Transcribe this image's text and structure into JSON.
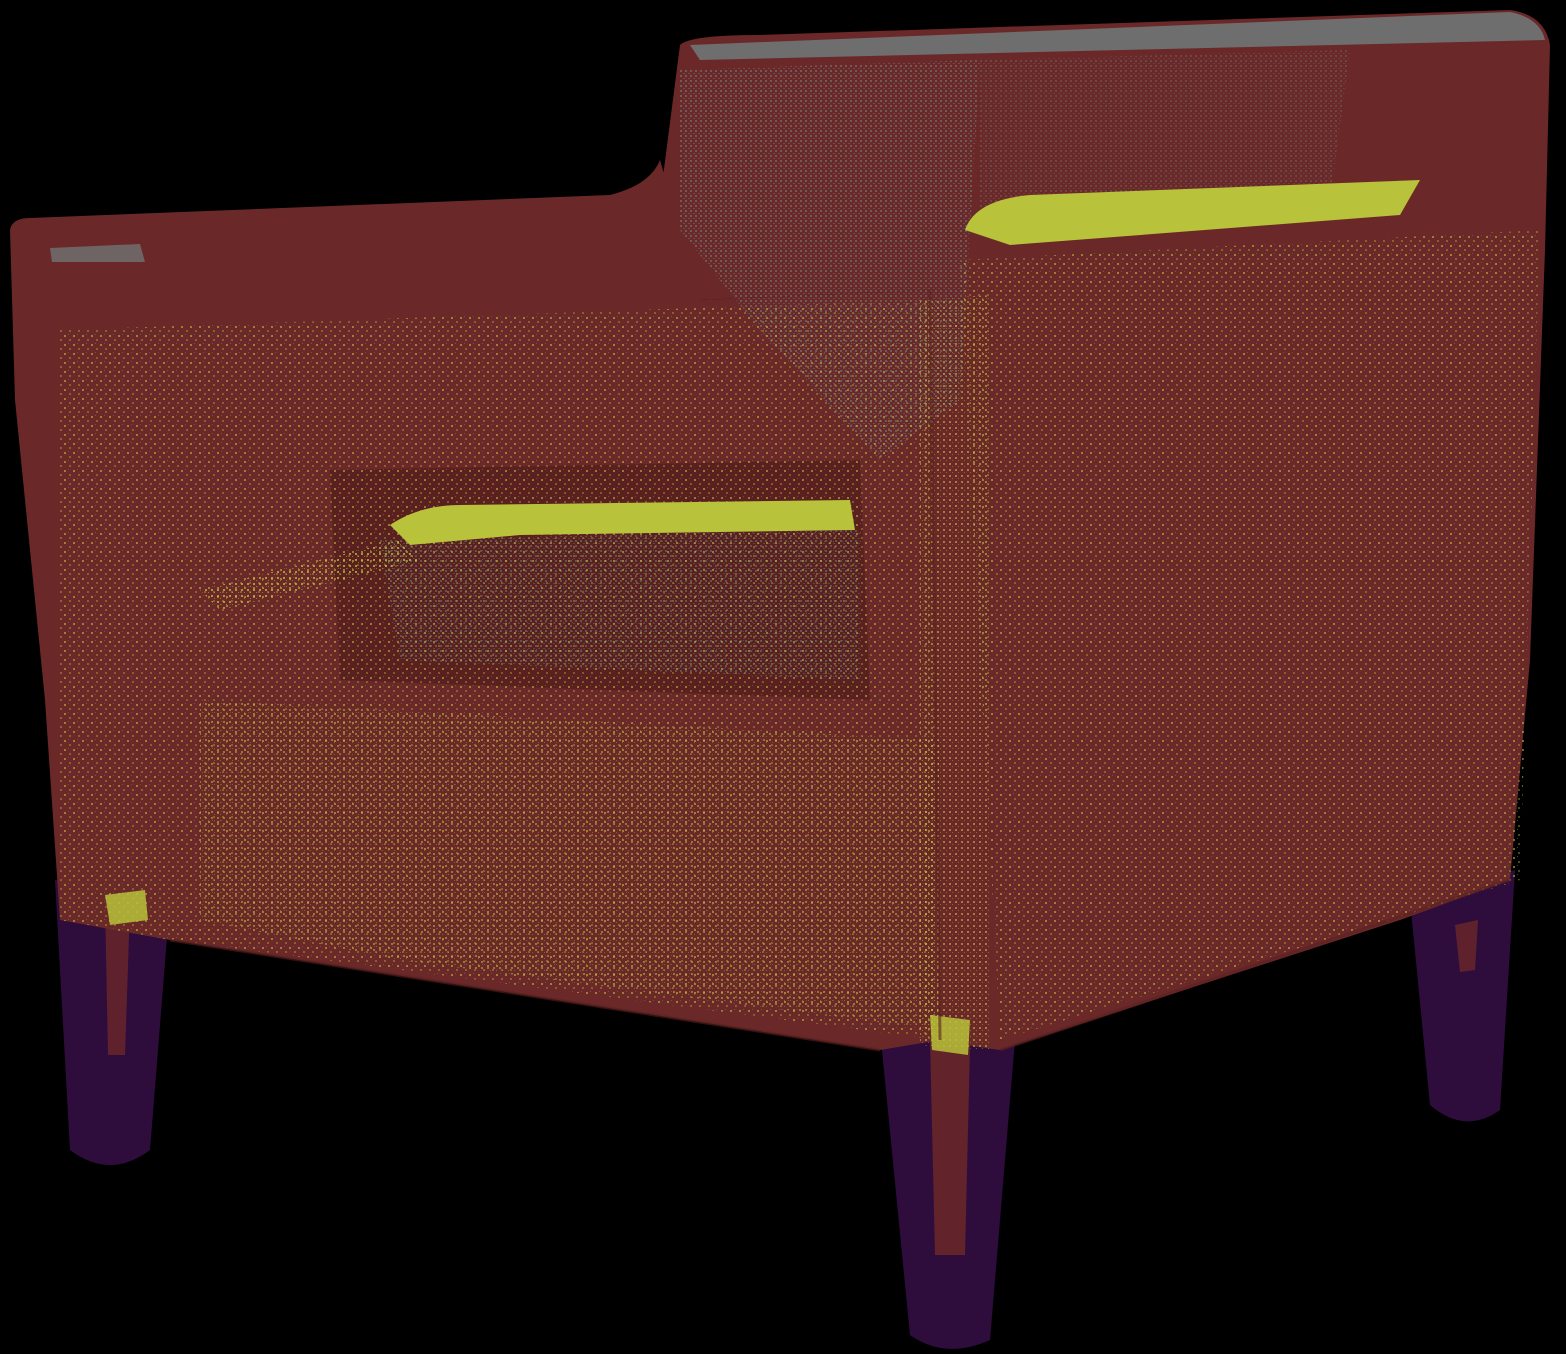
{
  "scene": {
    "subject": "armchair",
    "background_color": "#000000",
    "palette": {
      "upholstery": "#6b2828",
      "upholstery_shadow": "#5a2020",
      "highlight_grey": "#6e6e6e",
      "highlight_yellow": "#b8c23a",
      "speckle_yellow": "#c4c83c",
      "legs": "#2e0d3d",
      "leg_edge": "#6b2828"
    }
  }
}
